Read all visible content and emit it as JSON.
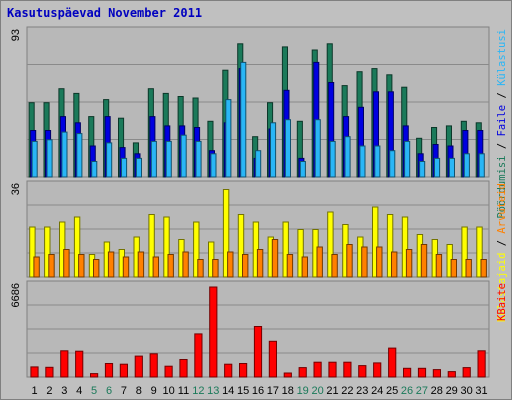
{
  "title": "Kasutuspäevad November 2011",
  "chart_data": [
    {
      "type": "bar",
      "ylim": [
        0,
        93
      ],
      "ymax_label": "93",
      "legend": [
        {
          "label": "Pöördumisi",
          "color": "#1b7a5a"
        },
        {
          "label": "Faile",
          "color": "#0000e0"
        },
        {
          "label": "Külastusi",
          "color": "#29b6f6"
        }
      ],
      "series": [
        {
          "name": "Pöördumisi",
          "color": "#1b7a5a",
          "values": [
            48,
            48,
            57,
            54,
            39,
            50,
            38,
            22,
            57,
            54,
            52,
            51,
            36,
            69,
            86,
            26,
            48,
            84,
            36,
            82,
            86,
            59,
            68,
            70,
            66,
            58,
            25,
            32,
            33,
            36,
            35
          ]
        },
        {
          "name": "Faile",
          "color": "#0000e0",
          "values": [
            30,
            30,
            39,
            35,
            20,
            39,
            19,
            15,
            39,
            33,
            33,
            32,
            17,
            35,
            70,
            12,
            31,
            56,
            12,
            74,
            61,
            39,
            45,
            55,
            55,
            33,
            15,
            21,
            20,
            30,
            30
          ]
        },
        {
          "name": "Külastusi",
          "color": "#29b6f6",
          "values": [
            23,
            24,
            29,
            28,
            10,
            22,
            12,
            12,
            23,
            23,
            27,
            23,
            15,
            50,
            74,
            17,
            35,
            37,
            10,
            37,
            23,
            26,
            20,
            20,
            17,
            23,
            10,
            12,
            12,
            15,
            15
          ]
        }
      ]
    },
    {
      "type": "bar",
      "ylim": [
        0,
        36
      ],
      "ymax_label": "36",
      "legend": [
        {
          "label": "Külastajaid",
          "color": "#ffff00"
        },
        {
          "label": "Arvuteid",
          "color": "#ff8000"
        }
      ],
      "series": [
        {
          "name": "Külastajaid",
          "color": "#ffff00",
          "values": [
            20,
            20,
            22,
            24,
            9,
            14,
            11,
            16,
            25,
            24,
            15,
            22,
            14,
            35,
            25,
            22,
            16,
            22,
            19,
            19,
            26,
            21,
            16,
            28,
            25,
            24,
            17,
            15,
            13,
            20,
            20
          ]
        },
        {
          "name": "Arvuteid",
          "color": "#ff8000",
          "values": [
            8,
            9,
            11,
            9,
            7,
            10,
            8,
            10,
            8,
            9,
            10,
            7,
            7,
            10,
            9,
            11,
            15,
            9,
            8,
            12,
            9,
            13,
            12,
            12,
            10,
            11,
            13,
            9,
            7,
            7,
            7
          ]
        }
      ]
    },
    {
      "type": "bar",
      "ylim": [
        0,
        6686
      ],
      "ymax_label": "6686",
      "legend": [
        {
          "label": "KBaite",
          "color": "#ff0000"
        }
      ],
      "series": [
        {
          "name": "KBaite",
          "color": "#ff0000",
          "values": [
            750,
            720,
            1950,
            1920,
            250,
            1000,
            950,
            1550,
            1720,
            800,
            1300,
            3200,
            6686,
            950,
            1000,
            3750,
            2650,
            300,
            700,
            1100,
            1100,
            1100,
            850,
            1050,
            2150,
            650,
            650,
            550,
            400,
            700,
            1950
          ]
        }
      ]
    }
  ],
  "x_days": [
    "1",
    "2",
    "3",
    "4",
    "5",
    "6",
    "7",
    "8",
    "9",
    "10",
    "11",
    "12",
    "13",
    "14",
    "15",
    "16",
    "17",
    "18",
    "19",
    "20",
    "21",
    "22",
    "23",
    "24",
    "25",
    "26",
    "27",
    "28",
    "29",
    "30",
    "31"
  ],
  "weekend_days": [
    "5",
    "6",
    "12",
    "13",
    "19",
    "20",
    "26",
    "27"
  ],
  "colors": {
    "weekday": "#000000",
    "weekend": "#1b7a5a",
    "title": "#0000c0",
    "background": "#c0c0c0",
    "plot_bg": "#b8b8b8"
  }
}
